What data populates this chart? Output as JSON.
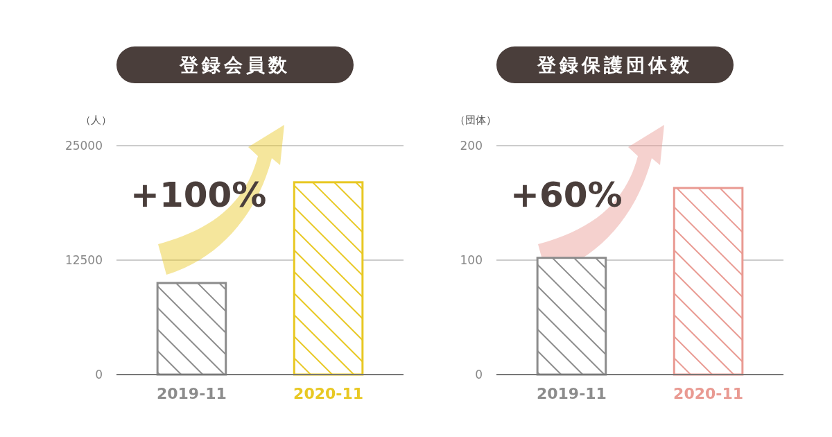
{
  "chart_data": [
    {
      "type": "bar",
      "title": "登録会員数",
      "ylabel": "（人）",
      "categories": [
        "2019-11",
        "2020-11"
      ],
      "values": [
        10000,
        21000
      ],
      "colors": [
        "#8c8c8c",
        "#e8c823"
      ],
      "ylim": [
        0,
        25000
      ],
      "yticks": [
        0,
        12500,
        25000
      ],
      "grid": "y",
      "annotations": [
        "+100%"
      ]
    },
    {
      "type": "bar",
      "title": "登録保護団体数",
      "ylabel": "（団体）",
      "categories": [
        "2019-11",
        "2020-11"
      ],
      "values": [
        102,
        163
      ],
      "colors": [
        "#8c8c8c",
        "#e99a92"
      ],
      "ylim": [
        0,
        200
      ],
      "yticks": [
        0,
        100,
        200
      ],
      "grid": "y",
      "annotations": [
        "+60%"
      ]
    }
  ]
}
